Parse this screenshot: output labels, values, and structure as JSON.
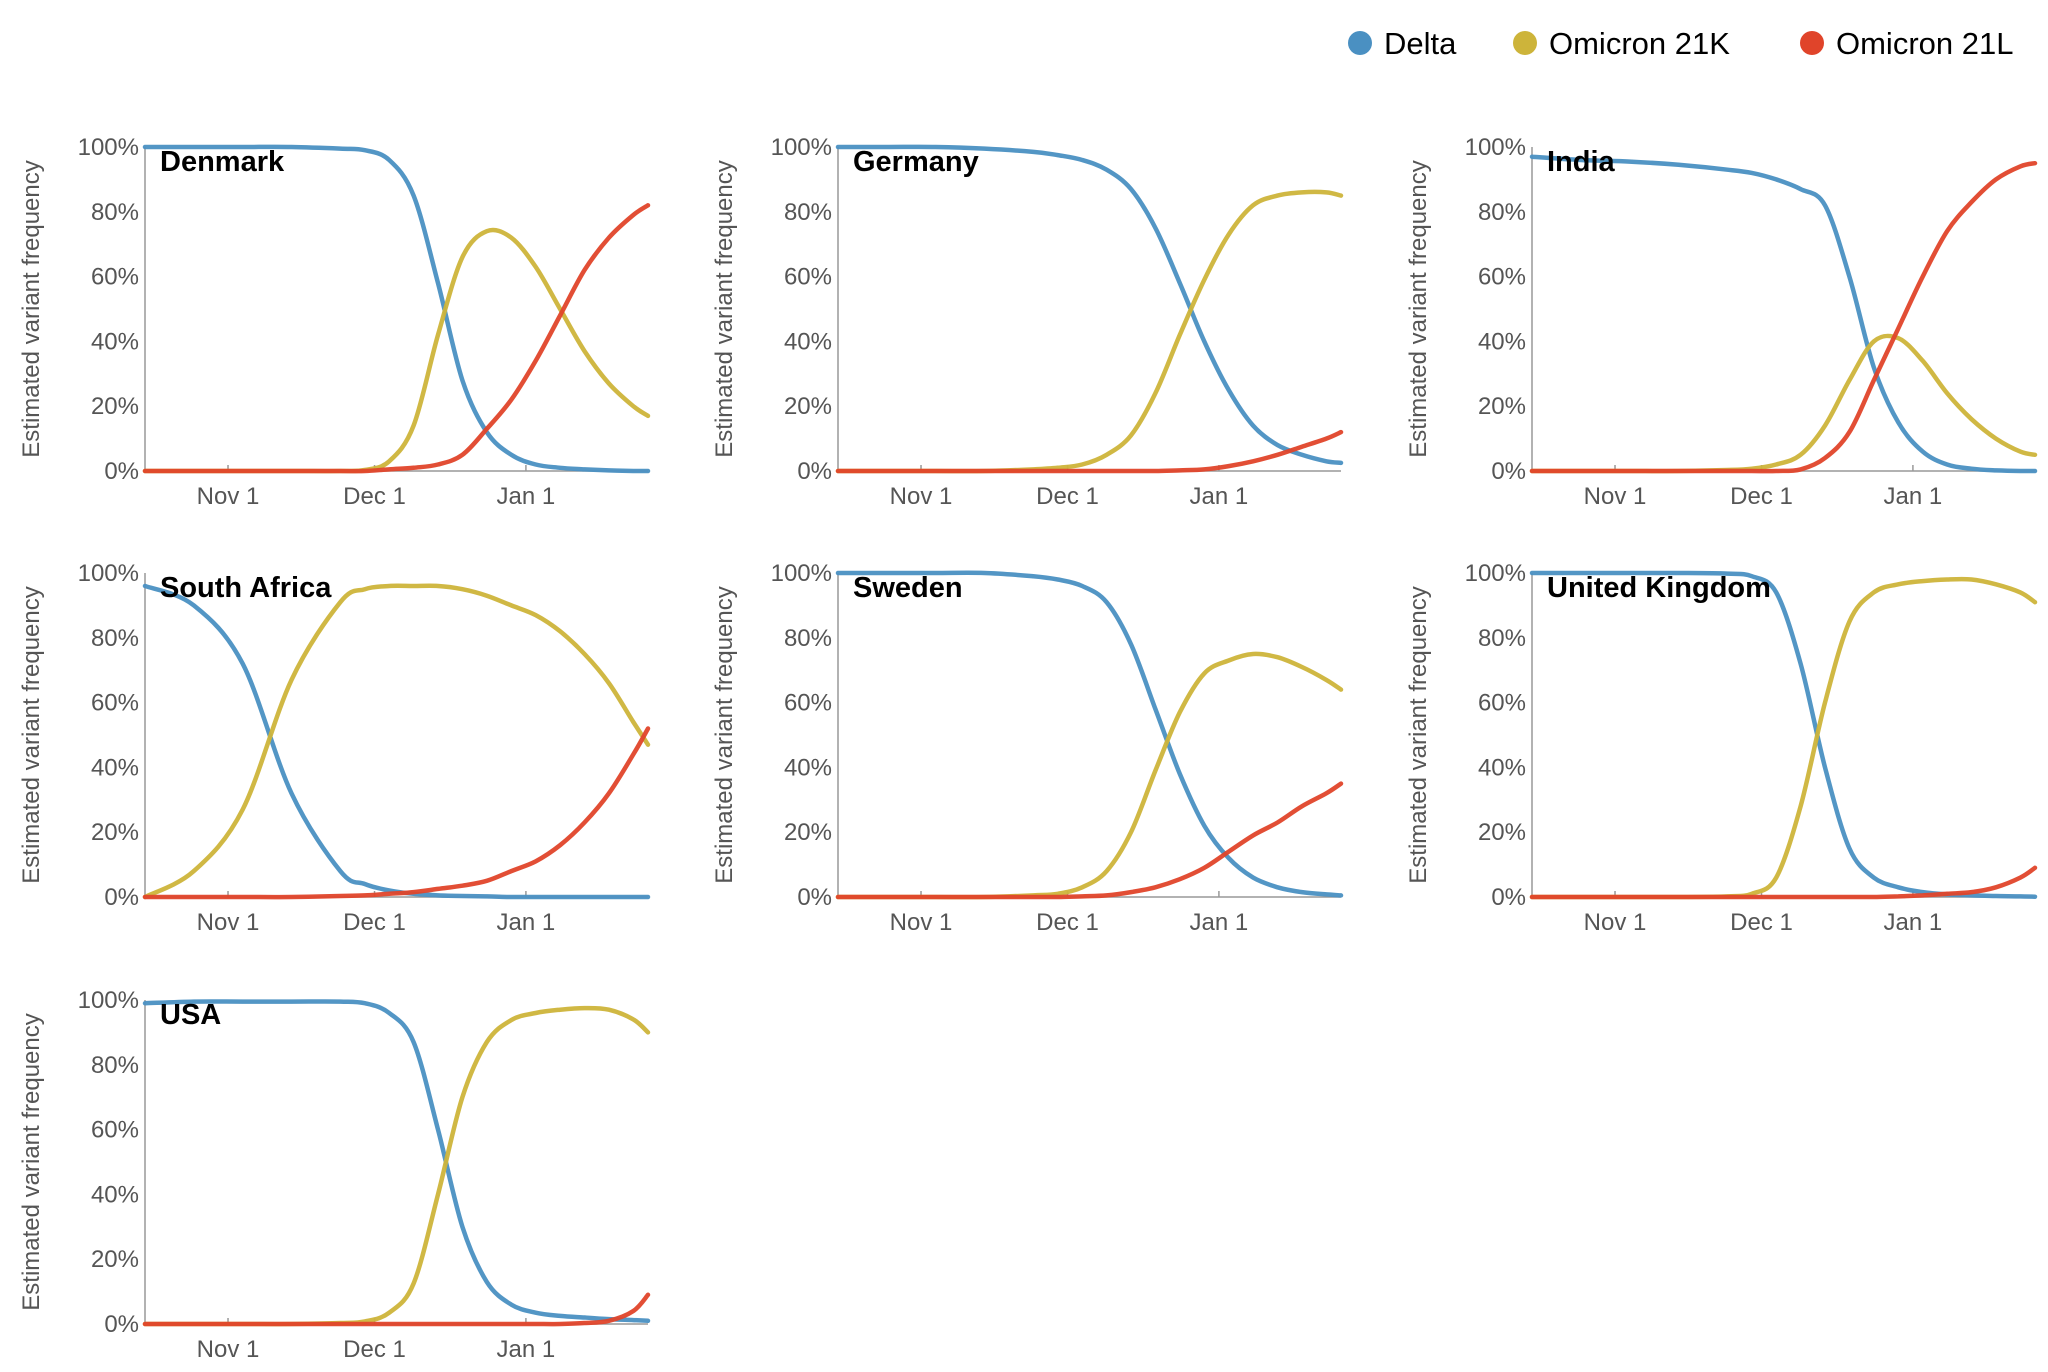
{
  "chart_data": {
    "type": "line",
    "legend": {
      "placement": "top-right"
    },
    "series_meta": [
      {
        "key": "delta",
        "name": "Delta",
        "color": "#4a90c2"
      },
      {
        "key": "k",
        "name": "Omicron 21K",
        "color": "#cdb43a"
      },
      {
        "key": "l",
        "name": "Omicron 21L",
        "color": "#e0442a"
      }
    ],
    "ylabel": "Estimated variant frequency",
    "ylim": [
      0,
      100
    ],
    "yticks": [
      0,
      20,
      40,
      60,
      80,
      100
    ],
    "ytick_labels": [
      "0%",
      "20%",
      "40%",
      "60%",
      "80%",
      "100%"
    ],
    "x_unit": "days since Oct 15",
    "xlim": [
      0,
      103
    ],
    "xticks": [
      17,
      47,
      78
    ],
    "xtick_labels": [
      "Nov 1",
      "Dec 1",
      "Jan 1"
    ],
    "x": [
      0,
      10,
      20,
      30,
      40,
      45,
      50,
      55,
      60,
      65,
      70,
      75,
      80,
      85,
      90,
      95,
      100,
      103
    ],
    "panels": [
      {
        "title": "Denmark",
        "delta": [
          100,
          100,
          100,
          100,
          99.5,
          99,
          96,
          85,
          58,
          28,
          12,
          5,
          2,
          1,
          0.5,
          0.2,
          0,
          0
        ],
        "k": [
          0,
          0,
          0,
          0,
          0,
          0.3,
          3,
          14,
          42,
          66,
          74,
          72,
          63,
          50,
          37,
          27,
          20,
          17
        ],
        "l": [
          0,
          0,
          0,
          0,
          0,
          0,
          0.5,
          1,
          2,
          5,
          13,
          22,
          34,
          48,
          62,
          72,
          79,
          82
        ]
      },
      {
        "title": "Germany",
        "delta": [
          100,
          100,
          100,
          99.5,
          98.5,
          97.5,
          96,
          93,
          87,
          75,
          58,
          40,
          25,
          14,
          8,
          5,
          3,
          2.5
        ],
        "k": [
          0,
          0,
          0,
          0,
          0.5,
          1,
          2,
          5,
          11,
          24,
          42,
          59,
          73,
          82,
          85,
          86,
          86,
          85
        ],
        "l": [
          0,
          0,
          0,
          0,
          0,
          0,
          0,
          0,
          0,
          0,
          0.2,
          0.5,
          1.5,
          3,
          5,
          7.5,
          10,
          12
        ]
      },
      {
        "title": "India",
        "delta": [
          97,
          96,
          95.5,
          94.5,
          93,
          92,
          90,
          87,
          82,
          60,
          32,
          15,
          6,
          2,
          0.7,
          0.2,
          0,
          0
        ],
        "k": [
          0,
          0,
          0,
          0,
          0.3,
          0.7,
          2,
          5,
          14,
          28,
          40,
          41,
          34,
          24,
          16,
          10,
          6,
          5
        ],
        "l": [
          0,
          0,
          0,
          0,
          0,
          0,
          0,
          0.5,
          4,
          12,
          28,
          44,
          60,
          74,
          83,
          90,
          94,
          95
        ]
      },
      {
        "title": "South Africa",
        "delta": [
          96,
          90,
          72,
          32,
          8,
          4,
          2,
          1,
          0.5,
          0.3,
          0.2,
          0,
          0,
          0,
          0,
          0,
          0,
          0
        ],
        "k": [
          0,
          8,
          27,
          67,
          91,
          95,
          96,
          96,
          96,
          95,
          93,
          90,
          87,
          82,
          75,
          66,
          54,
          47
        ],
        "l": [
          0,
          0,
          0,
          0,
          0.3,
          0.5,
          1,
          1.5,
          2.5,
          3.5,
          5,
          8,
          11,
          16,
          23,
          32,
          44,
          52
        ]
      },
      {
        "title": "Sweden",
        "delta": [
          100,
          100,
          100,
          100,
          99,
          98,
          96,
          91,
          78,
          58,
          38,
          22,
          12,
          6,
          3,
          1.5,
          0.8,
          0.5
        ],
        "k": [
          0,
          0,
          0,
          0,
          0.5,
          1,
          3,
          8,
          20,
          39,
          57,
          69,
          73,
          75,
          74,
          71,
          67,
          64
        ],
        "l": [
          0,
          0,
          0,
          0,
          0,
          0,
          0.2,
          0.5,
          1.5,
          3,
          5.5,
          9,
          14,
          19,
          23,
          28,
          32,
          35
        ]
      },
      {
        "title": "United Kingdom",
        "delta": [
          100,
          100,
          100,
          100,
          99.8,
          99,
          94,
          72,
          40,
          15,
          6,
          3,
          1.5,
          0.8,
          0.5,
          0.3,
          0.2,
          0.1
        ],
        "k": [
          0,
          0,
          0,
          0,
          0.2,
          1,
          6,
          28,
          60,
          85,
          94,
          96.5,
          97.5,
          98,
          98,
          96.5,
          94,
          91
        ],
        "l": [
          0,
          0,
          0,
          0,
          0,
          0,
          0,
          0,
          0,
          0,
          0,
          0.2,
          0.5,
          1,
          1.5,
          3,
          6,
          9
        ]
      },
      {
        "title": "USA",
        "delta": [
          99,
          99.5,
          99.5,
          99.5,
          99.5,
          99,
          96,
          87,
          60,
          30,
          13,
          6,
          3.5,
          2.5,
          2,
          1.5,
          1.2,
          1
        ],
        "k": [
          0,
          0,
          0,
          0,
          0.3,
          0.8,
          3.5,
          12.5,
          40,
          70,
          87,
          93.8,
          96,
          97,
          97.5,
          97,
          94,
          90
        ],
        "l": [
          0,
          0,
          0,
          0,
          0,
          0,
          0,
          0,
          0,
          0,
          0,
          0,
          0,
          0,
          0.3,
          1,
          4,
          9
        ]
      }
    ]
  }
}
